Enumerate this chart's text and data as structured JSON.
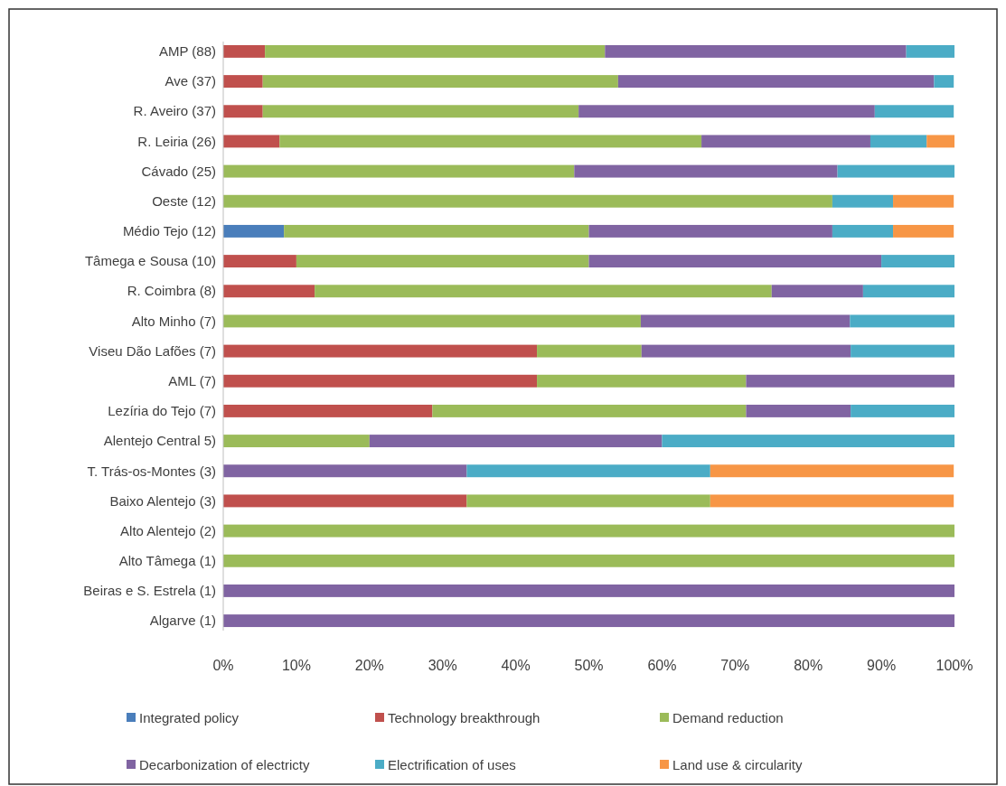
{
  "chart_data": {
    "type": "bar",
    "orientation": "horizontal",
    "stacked": true,
    "categories": [
      "AMP (88)",
      "Ave (37)",
      "R. Aveiro (37)",
      "R. Leiria (26)",
      "Cávado (25)",
      "Oeste (12)",
      "Médio Tejo (12)",
      "Tâmega e Sousa (10)",
      "R. Coimbra (8)",
      "Alto Minho (7)",
      "Viseu Dão Lafões (7)",
      "AML (7)",
      "Lezíria do Tejo (7)",
      "Alentejo Central 5)",
      "T. Trás-os-Montes (3)",
      "Baixo Alentejo (3)",
      "Alto Alentejo (2)",
      "Alto Tâmega (1)",
      "Beiras e S. Estrela (1)",
      "Algarve (1)"
    ],
    "series": [
      {
        "name": "Integrated policy",
        "color": "#4a7ebb",
        "values": [
          0,
          0,
          0,
          0,
          0,
          0,
          8.3,
          0,
          0,
          0,
          0,
          0,
          0,
          0,
          0,
          0,
          0,
          0,
          0,
          0
        ]
      },
      {
        "name": "Technology breakthrough",
        "color": "#c0504d",
        "values": [
          5.7,
          5.4,
          5.4,
          7.7,
          0,
          0,
          0,
          10,
          12.5,
          0,
          42.9,
          42.9,
          28.6,
          0,
          0,
          33.3,
          0,
          0,
          0,
          0
        ]
      },
      {
        "name": "Demand reduction",
        "color": "#9bbb59",
        "values": [
          46.5,
          48.6,
          43.2,
          57.7,
          48,
          83.3,
          41.7,
          40,
          62.5,
          57.1,
          14.3,
          28.6,
          42.9,
          20,
          0,
          33.3,
          100,
          100,
          0,
          0
        ]
      },
      {
        "name": "Decarbonization of electricty",
        "color": "#8064a2",
        "values": [
          41.2,
          43.2,
          40.5,
          23.1,
          36,
          0,
          33.3,
          40,
          12.5,
          28.6,
          28.6,
          28.5,
          14.3,
          40,
          33.3,
          0,
          0,
          0,
          100,
          100
        ]
      },
      {
        "name": "Electrification of uses",
        "color": "#4bacc6",
        "values": [
          6.6,
          2.7,
          10.8,
          7.7,
          16,
          8.3,
          8.3,
          10,
          12.5,
          14.3,
          14.2,
          0,
          14.2,
          40,
          33.3,
          0,
          0,
          0,
          0,
          0
        ]
      },
      {
        "name": "Land use & circularity",
        "color": "#f79646",
        "values": [
          0,
          0,
          0,
          3.8,
          0,
          8.3,
          8.3,
          0,
          0,
          0,
          0,
          0,
          0,
          0,
          33.3,
          33.3,
          0,
          0,
          0,
          0
        ]
      }
    ],
    "xlim": [
      0,
      100
    ],
    "xticks": [
      {
        "value": 0,
        "label": "0%"
      },
      {
        "value": 10,
        "label": "10%"
      },
      {
        "value": 20,
        "label": "20%"
      },
      {
        "value": 30,
        "label": "30%"
      },
      {
        "value": 40,
        "label": "40%"
      },
      {
        "value": 50,
        "label": "50%"
      },
      {
        "value": 60,
        "label": "60%"
      },
      {
        "value": 70,
        "label": "70%"
      },
      {
        "value": 80,
        "label": "80%"
      },
      {
        "value": 90,
        "label": "90%"
      },
      {
        "value": 100,
        "label": "100%"
      }
    ],
    "grid": false,
    "legend": "bottom"
  }
}
